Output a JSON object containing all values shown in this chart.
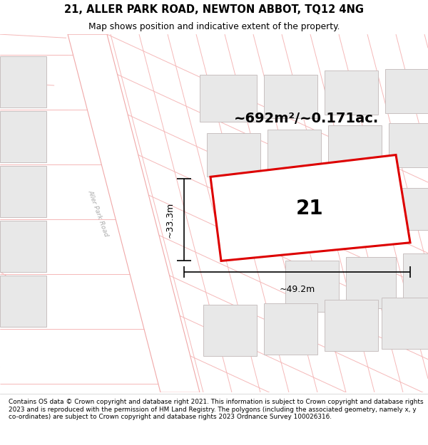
{
  "title": "21, ALLER PARK ROAD, NEWTON ABBOT, TQ12 4NG",
  "subtitle": "Map shows position and indicative extent of the property.",
  "area_label": "~692m²/~0.171ac.",
  "plot_number": "21",
  "dim_width": "~49.2m",
  "dim_height": "~33.3m",
  "footer": "Contains OS data © Crown copyright and database right 2021. This information is subject to Crown copyright and database rights 2023 and is reproduced with the permission of HM Land Registry. The polygons (including the associated geometry, namely x, y co-ordinates) are subject to Crown copyright and database rights 2023 Ordnance Survey 100026316.",
  "bg_color": "#ffffff",
  "building_fill": "#e8e8e8",
  "building_edge": "#c8c0c0",
  "highlight_fill": "#ffffff",
  "highlight_edge": "#dd0000",
  "road_outline": "#f0a8a8",
  "road_fill": "#ffffff",
  "street_line": "#f5b8b8",
  "road_label_color": "#aaaaaa"
}
